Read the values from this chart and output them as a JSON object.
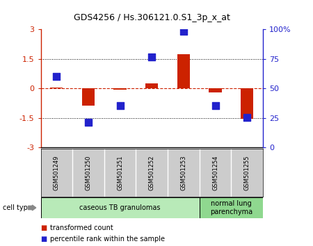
{
  "title": "GDS4256 / Hs.306121.0.S1_3p_x_at",
  "samples": [
    "GSM501249",
    "GSM501250",
    "GSM501251",
    "GSM501252",
    "GSM501253",
    "GSM501254",
    "GSM501255"
  ],
  "red_bars": [
    0.05,
    -0.85,
    -0.05,
    0.27,
    1.73,
    -0.18,
    -1.55
  ],
  "blue_dots": [
    0.6,
    -1.73,
    -0.85,
    1.62,
    2.92,
    -0.85,
    -1.45
  ],
  "groups": [
    {
      "label": "caseous TB granulomas",
      "span": [
        0,
        4
      ],
      "color": "#b8eab8"
    },
    {
      "label": "normal lung\nparenchyma",
      "span": [
        5,
        6
      ],
      "color": "#8fd88f"
    }
  ],
  "ylim": [
    -3,
    3
  ],
  "y_ticks_left": [
    -3,
    -1.5,
    0,
    1.5,
    3
  ],
  "y_ticks_right_pct": [
    0,
    25,
    50,
    75,
    100
  ],
  "red_color": "#cc2200",
  "blue_color": "#2222cc",
  "bar_width": 0.4,
  "dot_size": 55,
  "legend_red": "transformed count",
  "legend_blue": "percentile rank within the sample",
  "cell_type_label": "cell type",
  "tick_area_color": "#cccccc"
}
